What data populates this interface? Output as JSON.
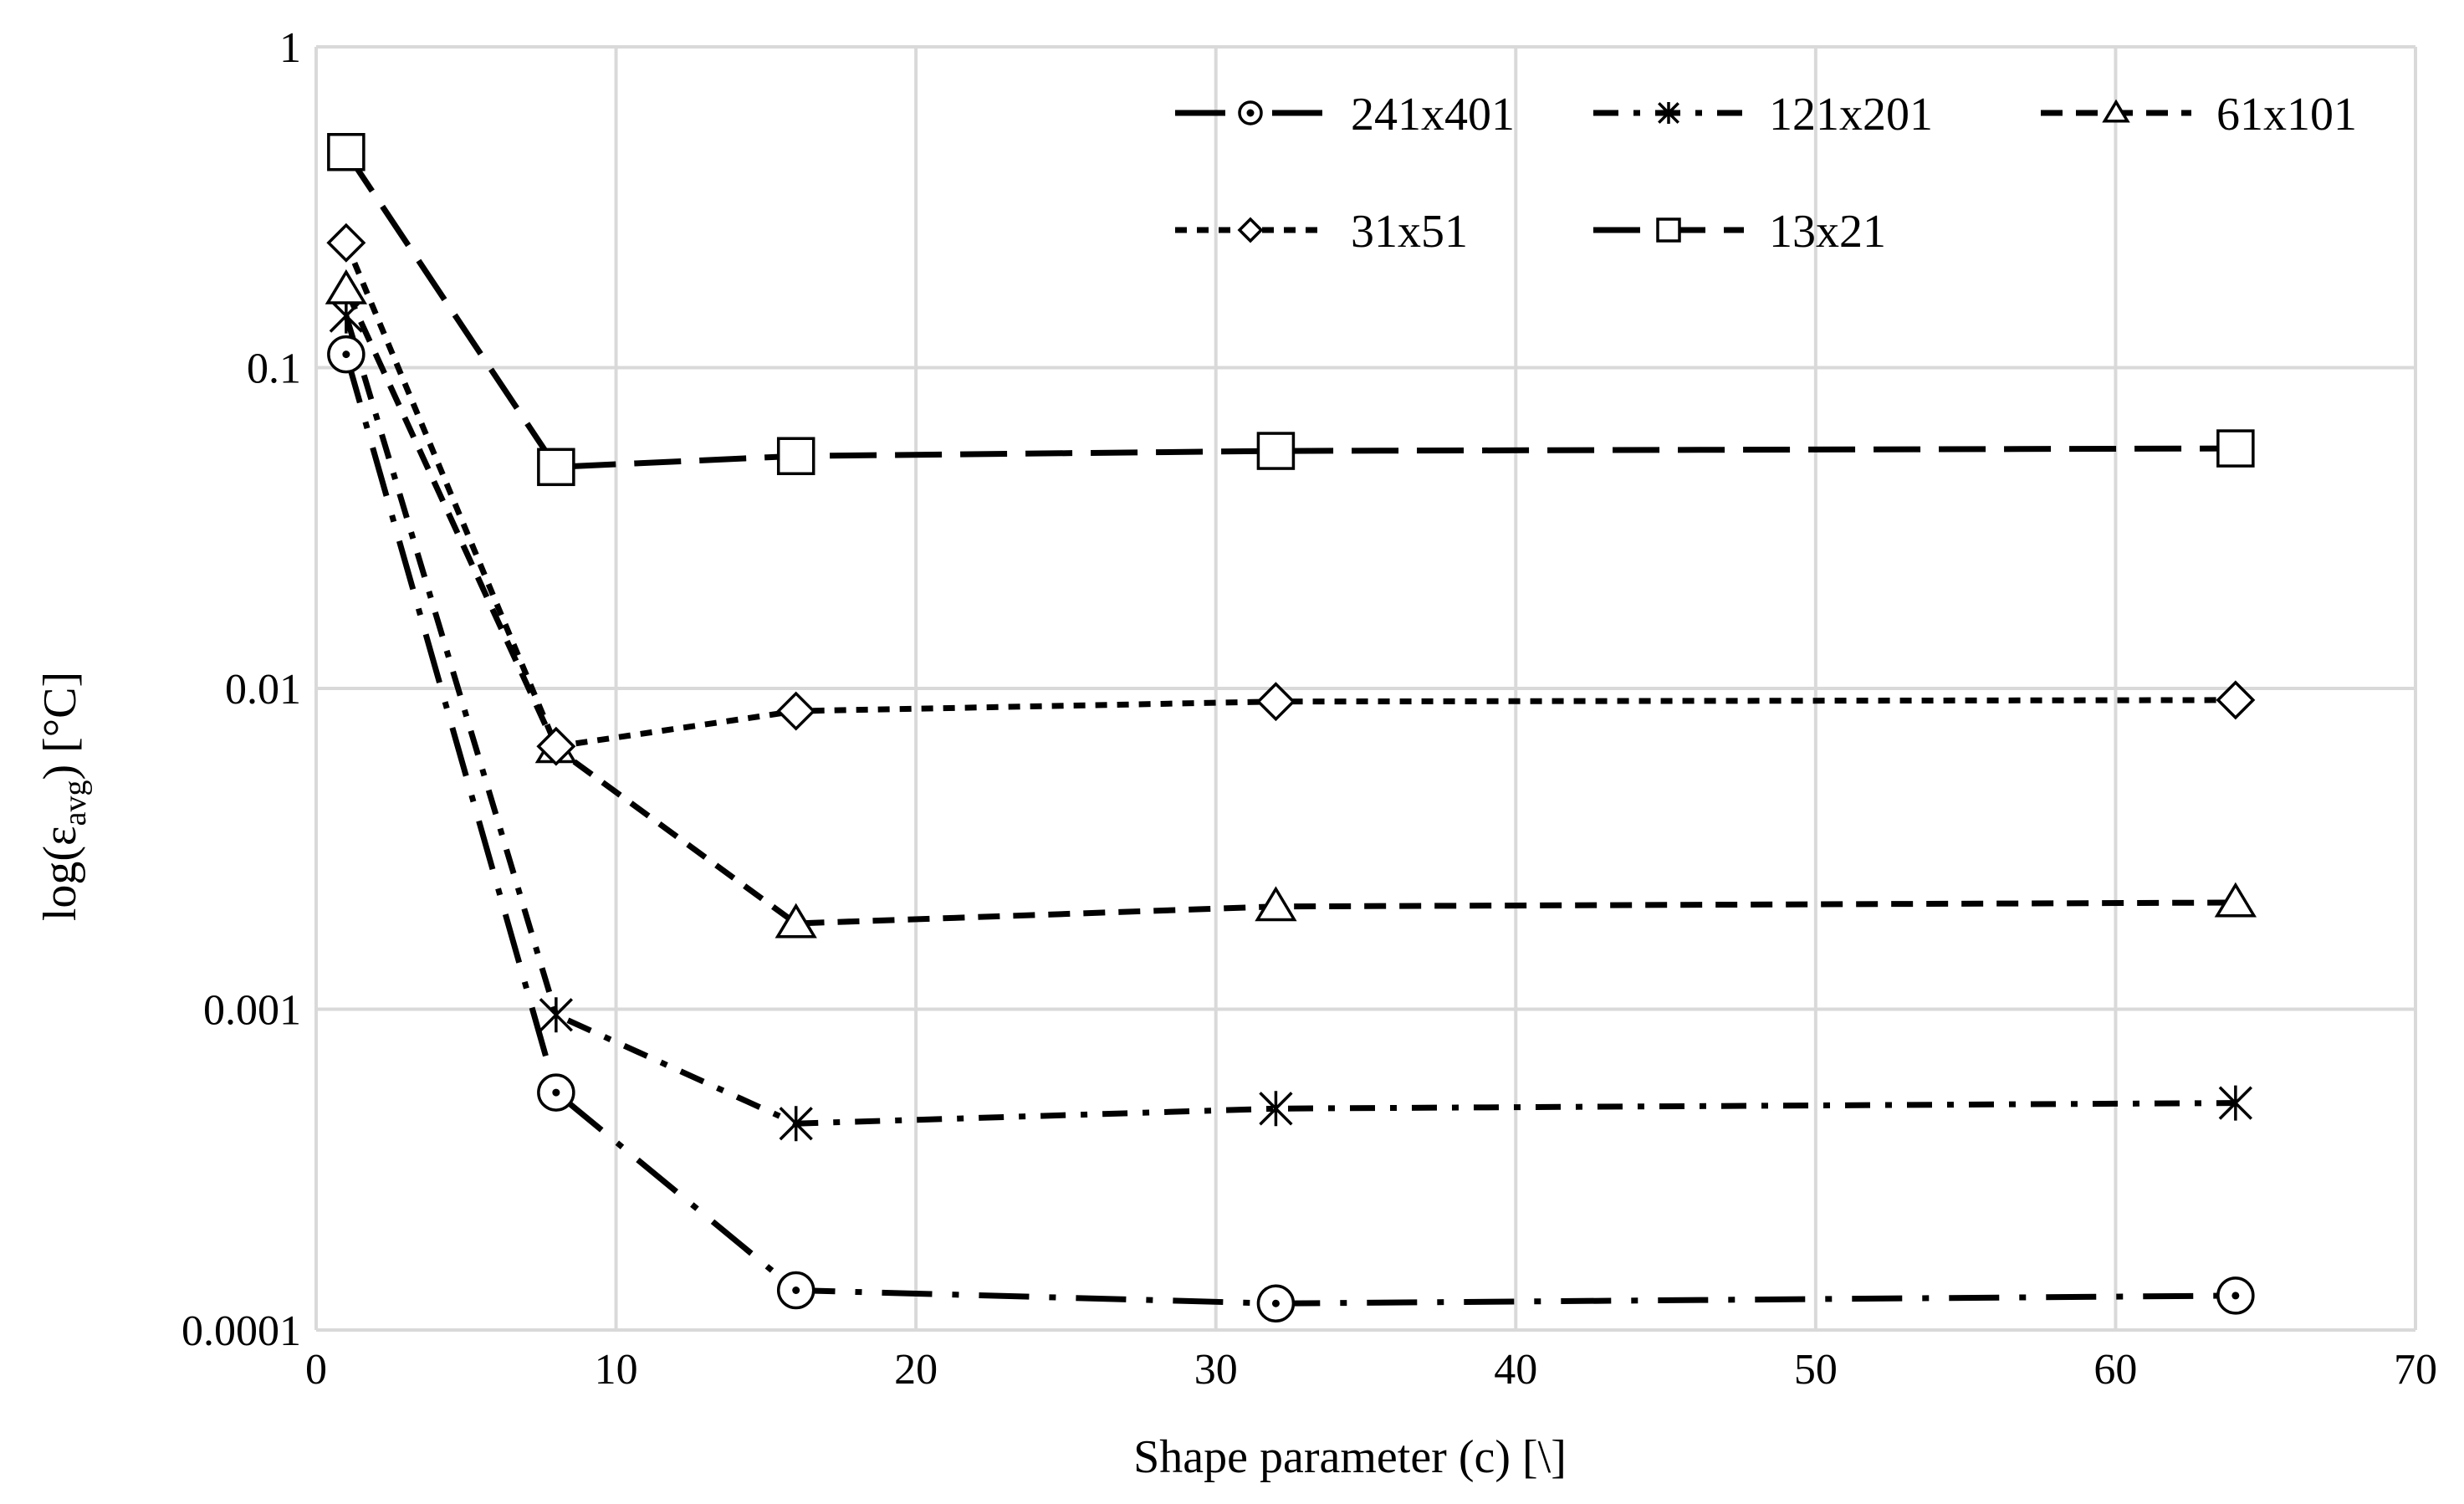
{
  "chart_data": {
    "type": "line",
    "title": "",
    "xlabel": "Shape parameter (c) [\\]",
    "ylabel": {
      "prefix": "log(ε",
      "sub": "avg",
      "suffix": ") [°C]"
    },
    "xlim": [
      0,
      70
    ],
    "ylim": [
      0.0001,
      1
    ],
    "yscale": "log",
    "grid": true,
    "legend_position": "top-right",
    "x_ticks": [
      "0",
      "10",
      "20",
      "30",
      "40",
      "50",
      "60",
      "70"
    ],
    "y_ticks": [
      "0.0001",
      "0.001",
      "0.01",
      "0.1",
      "1"
    ],
    "series": [
      {
        "name": "241x401",
        "marker": "circle-dot",
        "dash": "long-dash-dot",
        "x": [
          1,
          8,
          16,
          32,
          64
        ],
        "y": [
          0.11,
          0.00055,
          0.000133,
          0.000121,
          0.000128
        ]
      },
      {
        "name": "121x201",
        "marker": "asterisk",
        "dash": "dash-dot",
        "x": [
          1,
          8,
          16,
          32,
          64
        ],
        "y": [
          0.145,
          0.00096,
          0.00044,
          0.00049,
          0.00051
        ]
      },
      {
        "name": "61x101",
        "marker": "triangle",
        "dash": "dash",
        "x": [
          1,
          8,
          16,
          32,
          64
        ],
        "y": [
          0.175,
          0.0065,
          0.00185,
          0.00209,
          0.00215
        ]
      },
      {
        "name": "31x51",
        "marker": "diamond",
        "dash": "short-dash",
        "x": [
          1,
          8,
          16,
          32,
          64
        ],
        "y": [
          0.245,
          0.0066,
          0.0085,
          0.0091,
          0.0092
        ]
      },
      {
        "name": "13x21",
        "marker": "square",
        "dash": "long-dash",
        "x": [
          1,
          8,
          16,
          32,
          64
        ],
        "y": [
          0.47,
          0.049,
          0.053,
          0.055,
          0.056
        ]
      }
    ]
  }
}
